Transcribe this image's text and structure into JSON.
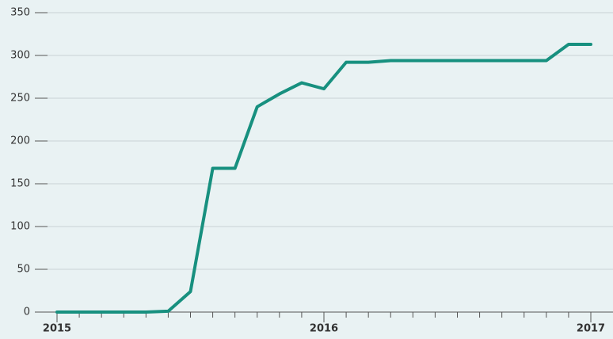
{
  "chart_data": {
    "type": "line",
    "categories": [
      "2015",
      null,
      null,
      null,
      null,
      null,
      null,
      null,
      null,
      null,
      null,
      null,
      "2016",
      null,
      null,
      null,
      null,
      null,
      null,
      null,
      null,
      null,
      null,
      null,
      "2017"
    ],
    "series": [
      {
        "color": "#17907f",
        "values": [
          0,
          0,
          0,
          0,
          0,
          1,
          24,
          168,
          168,
          240,
          255,
          268,
          261,
          292,
          292,
          294,
          294,
          294,
          294,
          294,
          294,
          294,
          294,
          313,
          313
        ]
      }
    ],
    "ylim": [
      0,
      350
    ],
    "yticks": [
      0,
      50,
      100,
      150,
      200,
      250,
      300,
      350
    ],
    "grid": true
  }
}
